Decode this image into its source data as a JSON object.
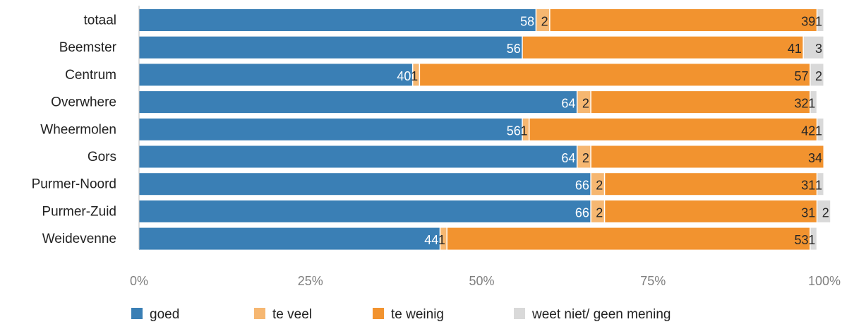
{
  "chart_data": {
    "type": "bar",
    "orientation": "horizontal",
    "stacked": "percent",
    "categories": [
      "totaal",
      "Beemster",
      "Centrum",
      "Overwhere",
      "Wheermolen",
      "Gors",
      "Purmer-Noord",
      "Purmer-Zuid",
      "Weidevenne"
    ],
    "series": [
      {
        "name": "goed",
        "color": "#3a7fb5",
        "values": [
          58,
          56,
          40,
          64,
          56,
          64,
          66,
          66,
          44
        ]
      },
      {
        "name": "te veel",
        "color": "#f6b771",
        "values": [
          2,
          0,
          1,
          2,
          1,
          2,
          2,
          2,
          1
        ]
      },
      {
        "name": "te weinig",
        "color": "#f2932f",
        "values": [
          39,
          41,
          57,
          32,
          42,
          34,
          31,
          31,
          53
        ]
      },
      {
        "name": "weet niet/ geen mening",
        "color": "#d9d9d9",
        "values": [
          1,
          3,
          2,
          1,
          1,
          0,
          1,
          2,
          1
        ]
      }
    ],
    "data_labels": [
      [
        "58",
        "2",
        "39",
        "1"
      ],
      [
        "56",
        "",
        "41",
        "3"
      ],
      [
        "40",
        "1",
        "57",
        "2"
      ],
      [
        "64",
        "2",
        "32",
        "1"
      ],
      [
        "56",
        "1",
        "42",
        "1"
      ],
      [
        "64",
        "2",
        "34",
        ""
      ],
      [
        "66",
        "2",
        "31",
        "1"
      ],
      [
        "66",
        "2",
        "31",
        "2"
      ],
      [
        "44",
        "1",
        "53",
        "1"
      ]
    ],
    "x_ticks": [
      "0%",
      "25%",
      "50%",
      "75%",
      "100%"
    ],
    "xlim": [
      0,
      100
    ],
    "legend_position": "bottom",
    "grid": false
  }
}
